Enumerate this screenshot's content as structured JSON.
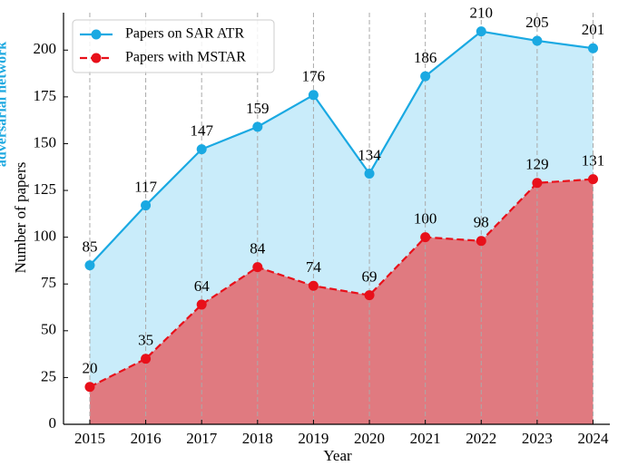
{
  "chart_data": {
    "type": "line",
    "x": [
      2015,
      2016,
      2017,
      2018,
      2019,
      2020,
      2021,
      2022,
      2023,
      2024
    ],
    "series": [
      {
        "name": "Papers on SAR ATR",
        "color": "#1aa9e2",
        "fill": "#c9ecfa",
        "linestyle": "solid",
        "values": [
          85,
          117,
          147,
          159,
          176,
          134,
          186,
          210,
          205,
          201
        ]
      },
      {
        "name": "Papers with MSTAR",
        "color": "#e8101a",
        "fill": "#e07a80",
        "linestyle": "dashed",
        "values": [
          20,
          35,
          64,
          84,
          74,
          69,
          100,
          98,
          129,
          131
        ]
      }
    ],
    "xlabel": "Year",
    "ylabel": "Number of papers",
    "annotations": [
      "adversarial network"
    ],
    "xlim": [
      2014.53,
      2024.3
    ],
    "ylim": [
      0,
      220
    ],
    "xticks": [
      2015,
      2016,
      2017,
      2018,
      2019,
      2020,
      2021,
      2022,
      2023,
      2024
    ],
    "yticks": [
      0,
      25,
      50,
      75,
      100,
      125,
      150,
      175,
      200
    ],
    "grid": "x",
    "legend": "upper left"
  }
}
